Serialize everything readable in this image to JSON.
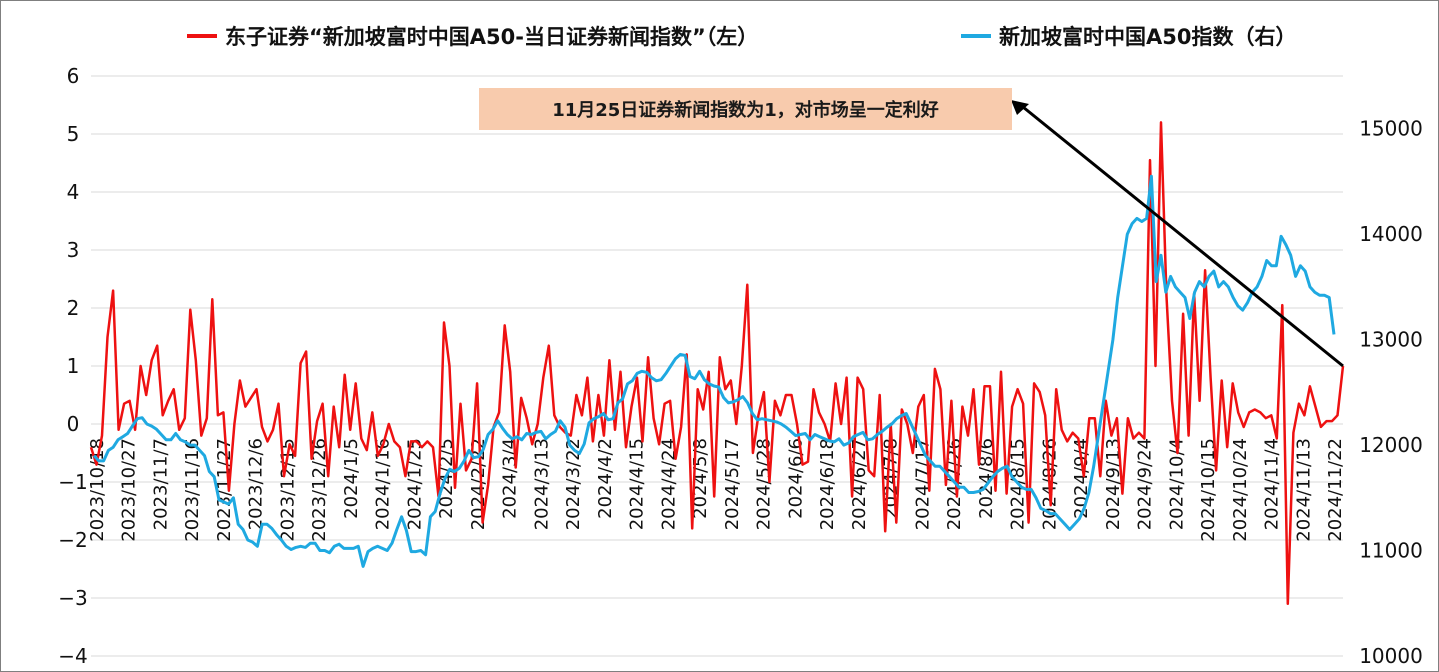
{
  "legend": {
    "series_left": "东子证券“新加坡富时中国A50-当日证券新闻指数”（左）",
    "series_right": "新加坡富时中国A50指数（右）"
  },
  "annotation": "11月25日证券新闻指数为1，对市场呈一定利好",
  "colors": {
    "red": "#ee1111",
    "blue": "#1fa9e1",
    "grid": "#d9d9d9",
    "annotation_bg": "#f8cbad"
  },
  "chart_data": {
    "type": "line",
    "grid": "horizontal",
    "legend_position": "top",
    "y_left": {
      "range": [
        -4,
        6
      ],
      "ticks": [
        "6",
        "5",
        "4",
        "3",
        "2",
        "1",
        "0",
        "−1",
        "−2",
        "−3",
        "−4"
      ]
    },
    "y_right": {
      "range": [
        10000,
        15500
      ],
      "ticks": [
        "15000",
        "14000",
        "13000",
        "12000",
        "11000",
        "10000"
      ]
    },
    "x_labels": [
      "2023/10/18",
      "2023/10/27",
      "2023/11/7",
      "2023/11/16",
      "2023/11/27",
      "2023/12/6",
      "2023/12/15",
      "2023/12/26",
      "2024/1/5",
      "2024/1/16",
      "2024/1/25",
      "2024/2/5",
      "2024/2/22",
      "2024/3/4",
      "2024/3/13",
      "2024/3/22",
      "2024/4/2",
      "2024/4/15",
      "2024/4/24",
      "2024/5/8",
      "2024/5/17",
      "2024/5/28",
      "2024/6/6",
      "2024/6/18",
      "2024/6/27",
      "2024/7/8",
      "2024/7/17",
      "2024/7/26",
      "2024/8/6",
      "2024/8/15",
      "2024/8/26",
      "2024/9/4",
      "2024/9/13",
      "2024/9/24",
      "2024/10/4",
      "2024/10/15",
      "2024/10/24",
      "2024/11/4",
      "2024/11/13",
      "2024/11/22"
    ],
    "series": [
      {
        "name": "东子证券“新加坡富时中国A50-当日证券新闻指数”（左）",
        "axis": "left",
        "values": [
          -0.4,
          -0.7,
          -0.2,
          1.5,
          2.3,
          -0.1,
          0.35,
          0.4,
          -0.1,
          1.0,
          0.5,
          1.1,
          1.35,
          0.15,
          0.4,
          0.6,
          -0.1,
          0.1,
          1.97,
          1.1,
          -0.2,
          0.1,
          2.15,
          0.15,
          0.2,
          -1.15,
          0.0,
          0.75,
          0.3,
          0.45,
          0.6,
          -0.05,
          -0.3,
          -0.1,
          0.35,
          -0.9,
          -0.35,
          -0.55,
          1.05,
          1.25,
          -0.6,
          0.05,
          0.35,
          -0.9,
          0.3,
          -0.4,
          0.85,
          -0.1,
          0.7,
          -0.25,
          -0.45,
          0.2,
          -0.55,
          -0.35,
          0.0,
          -0.3,
          -0.4,
          -0.9,
          -0.3,
          -0.3,
          -0.4,
          -0.3,
          -0.4,
          -1.25,
          1.75,
          1.0,
          -1.1,
          0.35,
          -0.8,
          -0.6,
          0.7,
          -1.7,
          -1.05,
          -0.05,
          0.2,
          1.7,
          0.9,
          -0.75,
          0.45,
          0.1,
          -0.35,
          0.0,
          0.8,
          1.35,
          0.15,
          -0.05,
          -0.15,
          -0.2,
          0.5,
          0.15,
          0.8,
          -0.3,
          0.5,
          -0.2,
          1.1,
          -0.1,
          0.9,
          -0.4,
          0.3,
          0.8,
          -0.3,
          1.15,
          0.1,
          -0.35,
          0.35,
          0.4,
          -0.6,
          -0.05,
          1.2,
          -1.8,
          0.6,
          0.25,
          0.9,
          -1.25,
          1.15,
          0.6,
          0.75,
          0.0,
          1.0,
          2.4,
          -0.5,
          0.15,
          0.55,
          -1.0,
          0.4,
          0.15,
          0.5,
          0.5,
          0.0,
          -0.7,
          -0.65,
          0.6,
          0.2,
          0.0,
          -0.3,
          0.7,
          0.0,
          0.8,
          -1.25,
          0.8,
          0.6,
          -0.8,
          -0.9,
          0.5,
          -1.85,
          0.0,
          -1.7,
          0.25,
          0.0,
          -0.5,
          0.3,
          0.5,
          -1.15,
          0.95,
          0.6,
          -1.05,
          0.4,
          -1.25,
          0.3,
          -0.2,
          0.6,
          -0.7,
          0.65,
          0.65,
          -1.15,
          0.9,
          -1.2,
          0.3,
          0.6,
          0.35,
          -1.7,
          0.7,
          0.55,
          0.15,
          -1.4,
          0.6,
          -0.1,
          -0.3,
          -0.15,
          -0.25,
          -0.9,
          0.1,
          0.1,
          -0.9,
          0.4,
          -0.2,
          0.1,
          -1.2,
          0.1,
          -0.25,
          -0.15,
          -0.25,
          4.55,
          1.0,
          5.2,
          2.2,
          0.4,
          -0.5,
          1.9,
          -0.2,
          2.25,
          0.4,
          2.65,
          0.8,
          -0.8,
          0.75,
          -0.4,
          0.7,
          0.2,
          -0.05,
          0.2,
          0.25,
          0.2,
          0.1,
          0.15,
          -0.25,
          2.05,
          -3.1,
          -0.15,
          0.35,
          0.15,
          0.65,
          0.3,
          -0.05,
          0.05,
          0.05,
          0.15,
          1.0
        ]
      },
      {
        "name": "新加坡富时中国A50指数（右）",
        "axis": "right",
        "values": [
          11900,
          11850,
          11850,
          11950,
          11980,
          12050,
          12080,
          12110,
          12180,
          12250,
          12260,
          12200,
          12180,
          12150,
          12100,
          12050,
          12050,
          12110,
          12050,
          12030,
          12000,
          12000,
          11950,
          11900,
          11750,
          11700,
          11480,
          11460,
          11440,
          11500,
          11250,
          11200,
          11100,
          11080,
          11040,
          11250,
          11250,
          11210,
          11150,
          11100,
          11040,
          11010,
          11030,
          11040,
          11030,
          11070,
          11070,
          11000,
          11000,
          10980,
          11040,
          11060,
          11020,
          11020,
          11020,
          11040,
          10850,
          10990,
          11020,
          11040,
          11020,
          11000,
          11070,
          11200,
          11320,
          11190,
          10990,
          10990,
          11000,
          10960,
          11320,
          11370,
          11540,
          11680,
          11770,
          11750,
          11780,
          11850,
          11950,
          11880,
          11890,
          11960,
          12100,
          12150,
          12230,
          12160,
          12100,
          12060,
          12080,
          12050,
          12110,
          12100,
          12120,
          12130,
          12060,
          12100,
          12130,
          12230,
          12170,
          12000,
          11950,
          11920,
          12010,
          12210,
          12250,
          12270,
          12300,
          12240,
          12250,
          12400,
          12440,
          12580,
          12610,
          12680,
          12700,
          12690,
          12640,
          12610,
          12620,
          12680,
          12750,
          12820,
          12860,
          12850,
          12650,
          12630,
          12700,
          12620,
          12580,
          12560,
          12550,
          12450,
          12400,
          12410,
          12430,
          12460,
          12400,
          12300,
          12240,
          12250,
          12240,
          12230,
          12220,
          12200,
          12170,
          12130,
          12090,
          12100,
          12110,
          12050,
          12100,
          12080,
          12060,
          12040,
          12030,
          12060,
          12000,
          12020,
          12080,
          12100,
          12120,
          12050,
          12060,
          12100,
          12130,
          12170,
          12200,
          12250,
          12280,
          12300,
          12200,
          12100,
          12000,
          11900,
          11850,
          11800,
          11800,
          11750,
          11700,
          11650,
          11600,
          11600,
          11550,
          11550,
          11560,
          11580,
          11640,
          11700,
          11750,
          11780,
          11800,
          11700,
          11650,
          11600,
          11580,
          11580,
          11500,
          11400,
          11380,
          11350,
          11350,
          11300,
          11250,
          11200,
          11250,
          11300,
          11400,
          11550,
          11800,
          12100,
          12400,
          12700,
          13000,
          13400,
          13700,
          14000,
          14100,
          14150,
          14120,
          14150,
          14550,
          13550,
          13800,
          13450,
          13600,
          13500,
          13450,
          13400,
          13200,
          13450,
          13550,
          13500,
          13600,
          13650,
          13500,
          13550,
          13500,
          13400,
          13320,
          13280,
          13350,
          13450,
          13500,
          13600,
          13750,
          13700,
          13700,
          13980,
          13900,
          13800,
          13600,
          13700,
          13650,
          13500,
          13450,
          13420,
          13420,
          13400,
          13050
        ]
      }
    ]
  }
}
